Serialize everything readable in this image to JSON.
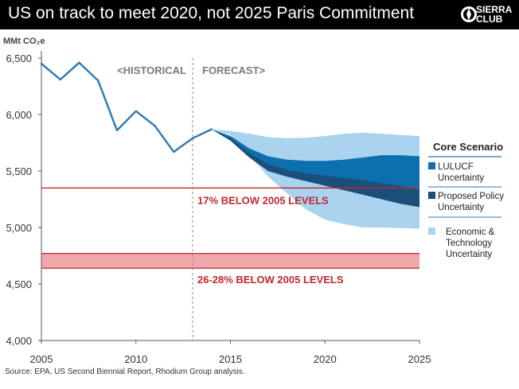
{
  "header": {
    "title": "US on track to meet 2020, not 2025 Paris Commitment",
    "logo_line1": "SIERRA",
    "logo_line2": "CLUB"
  },
  "source": "Source: EPA, US Second Biennial Report, Rhodium Group analysis.",
  "colors": {
    "line": "#2b7ab5",
    "econ_band": "#a9d3ef",
    "lulucf_band": "#0d6fae",
    "policy_band": "#1a4f7a",
    "target": "#c1272d",
    "target_fill": "#f1a7ab"
  },
  "chart_data": {
    "type": "line",
    "ylabel": "MMt CO₂e",
    "xlim": [
      2005,
      2025
    ],
    "ylim": [
      4000,
      6500
    ],
    "yticks": [
      4000,
      4500,
      5000,
      5500,
      6000,
      6500
    ],
    "ytick_labels": [
      "4,000",
      "4,500",
      "5,000",
      "5,500",
      "6,000",
      "6,500"
    ],
    "xticks": [
      2005,
      2010,
      2015,
      2020,
      2025
    ],
    "xtick_labels": [
      "2005",
      "2010",
      "2015",
      "2020",
      "2025"
    ],
    "divider_year": 2013,
    "period_labels": {
      "historical": "<HISTORICAL",
      "forecast": "FORECAST>"
    },
    "historical": {
      "name": "Historical emissions",
      "x": [
        2005,
        2006,
        2007,
        2008,
        2009,
        2010,
        2011,
        2012,
        2013,
        2014
      ],
      "y": [
        6450,
        6310,
        6460,
        6300,
        5860,
        6030,
        5900,
        5670,
        5790,
        5870
      ]
    },
    "bands": [
      {
        "key": "economic",
        "name": "Economic & Technology Uncertainty",
        "x": [
          2014,
          2015,
          2016,
          2017,
          2018,
          2019,
          2020,
          2021,
          2022,
          2023,
          2024,
          2025
        ],
        "upper": [
          5870,
          5855,
          5830,
          5800,
          5790,
          5795,
          5810,
          5830,
          5840,
          5830,
          5820,
          5810
        ],
        "lower": [
          5870,
          5820,
          5640,
          5450,
          5300,
          5160,
          5070,
          5030,
          5000,
          5000,
          4995,
          4990
        ]
      },
      {
        "key": "lulucf",
        "name": "LULUCF Uncertainty",
        "x": [
          2014,
          2015,
          2016,
          2017,
          2018,
          2019,
          2020,
          2021,
          2022,
          2023,
          2024,
          2025
        ],
        "upper": [
          5870,
          5810,
          5700,
          5630,
          5600,
          5590,
          5590,
          5600,
          5620,
          5640,
          5640,
          5630
        ],
        "lower": [
          5870,
          5770,
          5620,
          5500,
          5450,
          5420,
          5400,
          5380,
          5350,
          5320,
          5280,
          5240
        ]
      },
      {
        "key": "policy",
        "name": "Proposed Policy Uncertainty",
        "x": [
          2014,
          2015,
          2016,
          2017,
          2018,
          2019,
          2020,
          2021,
          2022,
          2023,
          2024,
          2025
        ],
        "upper": [
          5870,
          5790,
          5660,
          5560,
          5510,
          5480,
          5460,
          5440,
          5420,
          5390,
          5370,
          5330
        ],
        "lower": [
          5870,
          5770,
          5620,
          5500,
          5450,
          5410,
          5370,
          5330,
          5290,
          5250,
          5210,
          5180
        ]
      }
    ],
    "targets": [
      {
        "name": "17% BELOW 2005 LEVELS",
        "value": 5350
      },
      {
        "name": "26-28% BELOW 2005 LEVELS",
        "low": 4640,
        "high": 4770
      }
    ],
    "legend": {
      "title": "Core Scenario",
      "items": [
        {
          "key": "lulucf",
          "label": "LULUCF Uncertainty"
        },
        {
          "key": "policy",
          "label": "Proposed Policy Uncertainty"
        },
        {
          "key": "economic",
          "label": "Economic & Technology Uncertainty"
        }
      ]
    }
  }
}
